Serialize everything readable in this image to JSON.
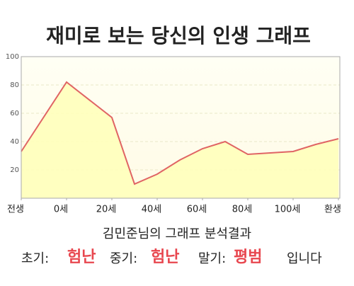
{
  "chart_data": {
    "type": "area",
    "title": "재미로 보는 당신의 인생 그래프",
    "x": [
      -20,
      0,
      20,
      30,
      40,
      50,
      60,
      70,
      80,
      90,
      100,
      110,
      120
    ],
    "values": [
      33,
      82,
      57,
      10,
      17,
      27,
      35,
      40,
      31,
      32,
      33,
      38,
      42
    ],
    "color": "#e06464",
    "fill": "#ffffb8",
    "xlim": [
      -20,
      120
    ],
    "xticks": [
      {
        "value": -20,
        "label": "전생"
      },
      {
        "value": 0,
        "label": "0세"
      },
      {
        "value": 20,
        "label": "20세"
      },
      {
        "value": 40,
        "label": "40세"
      },
      {
        "value": 60,
        "label": "60세"
      },
      {
        "value": 80,
        "label": "80세"
      },
      {
        "value": 100,
        "label": "100세"
      },
      {
        "value": 120,
        "label": "환생"
      }
    ],
    "ylim": [
      0,
      100
    ],
    "yticks": [
      20,
      40,
      60,
      80,
      100
    ],
    "grid": true
  },
  "result": {
    "heading": "김민준님의 그래프 분석결과",
    "items": [
      {
        "label": "초기:",
        "value": "험난"
      },
      {
        "label": "중기:",
        "value": "험난"
      },
      {
        "label": "말기:",
        "value": "평범"
      }
    ],
    "suffix": "입니다"
  }
}
